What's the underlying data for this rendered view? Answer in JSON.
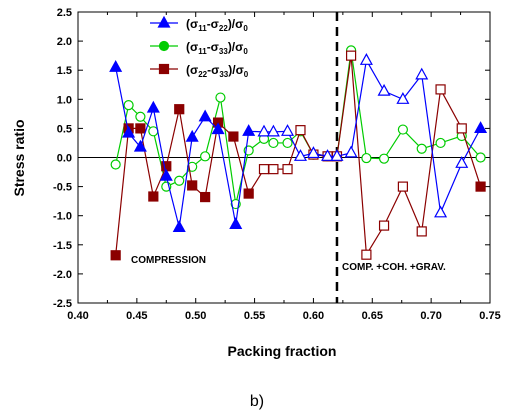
{
  "caption": "b)",
  "chart_data": {
    "type": "line",
    "xlabel": "Packing fraction",
    "ylabel": "Stress ratio",
    "xlim": [
      0.4,
      0.75
    ],
    "ylim": [
      -2.5,
      2.5
    ],
    "x_ticks": [
      0.4,
      0.45,
      0.5,
      0.55,
      0.6,
      0.65,
      0.7,
      0.75
    ],
    "y_ticks": [
      -2.5,
      -2.0,
      -1.5,
      -1.0,
      -0.5,
      0.0,
      0.5,
      1.0,
      1.5,
      2.0,
      2.5
    ],
    "x_tick_labels": [
      "0.40",
      "0.45",
      "0.50",
      "0.55",
      "0.60",
      "0.65",
      "0.70",
      "0.75"
    ],
    "y_tick_labels": [
      "-2.5",
      "-2.0",
      "-1.5",
      "-1.0",
      "-0.5",
      "0.0",
      "0.5",
      "1.0",
      "1.5",
      "2.0",
      "2.5"
    ],
    "zero_line": true,
    "divider_x": 0.62,
    "legend_position": "top-left",
    "annotations": {
      "left": "COMPRESSION",
      "right": "COMP. +COH. +GRAV."
    },
    "series": [
      {
        "name_parts": [
          "(σ",
          "11",
          "-σ",
          "22",
          ")/σ",
          "0"
        ],
        "color": "#0000ff",
        "marker": "triangle",
        "points": [
          {
            "x": 0.432,
            "y": 1.55,
            "filled": true
          },
          {
            "x": 0.443,
            "y": 0.42,
            "filled": true
          },
          {
            "x": 0.453,
            "y": 0.18,
            "filled": true
          },
          {
            "x": 0.464,
            "y": 0.85,
            "filled": true
          },
          {
            "x": 0.475,
            "y": -0.32,
            "filled": true
          },
          {
            "x": 0.486,
            "y": -1.2,
            "filled": true
          },
          {
            "x": 0.497,
            "y": 0.35,
            "filled": true
          },
          {
            "x": 0.508,
            "y": 0.7,
            "filled": true
          },
          {
            "x": 0.519,
            "y": 0.48,
            "filled": true
          },
          {
            "x": 0.534,
            "y": -1.15,
            "filled": true
          },
          {
            "x": 0.545,
            "y": 0.45,
            "filled": true
          },
          {
            "x": 0.558,
            "y": 0.44,
            "filled": false
          },
          {
            "x": 0.566,
            "y": 0.44,
            "filled": false
          },
          {
            "x": 0.578,
            "y": 0.45,
            "filled": false
          },
          {
            "x": 0.589,
            "y": 0.02,
            "filled": false
          },
          {
            "x": 0.6,
            "y": 0.07,
            "filled": false
          },
          {
            "x": 0.612,
            "y": 0.02,
            "filled": false
          },
          {
            "x": 0.62,
            "y": 0.02,
            "filled": false
          },
          {
            "x": 0.632,
            "y": 0.08,
            "filled": false
          },
          {
            "x": 0.645,
            "y": 1.67,
            "filled": false
          },
          {
            "x": 0.66,
            "y": 1.14,
            "filled": false
          },
          {
            "x": 0.676,
            "y": 1.0,
            "filled": false
          },
          {
            "x": 0.692,
            "y": 1.42,
            "filled": false
          },
          {
            "x": 0.708,
            "y": -0.95,
            "filled": false
          },
          {
            "x": 0.726,
            "y": -0.1,
            "filled": false
          },
          {
            "x": 0.742,
            "y": 0.5,
            "filled": true
          }
        ]
      },
      {
        "name_parts": [
          "(σ",
          "11",
          "-σ",
          "33",
          ")/σ",
          "0"
        ],
        "color": "#00cc00",
        "marker": "circle",
        "points": [
          {
            "x": 0.432,
            "y": -0.12,
            "filled": false
          },
          {
            "x": 0.443,
            "y": 0.9,
            "filled": false
          },
          {
            "x": 0.453,
            "y": 0.7,
            "filled": false
          },
          {
            "x": 0.464,
            "y": 0.45,
            "filled": false
          },
          {
            "x": 0.475,
            "y": -0.5,
            "filled": false
          },
          {
            "x": 0.486,
            "y": -0.4,
            "filled": false
          },
          {
            "x": 0.497,
            "y": -0.16,
            "filled": false
          },
          {
            "x": 0.508,
            "y": 0.02,
            "filled": false
          },
          {
            "x": 0.521,
            "y": 1.03,
            "filled": false
          },
          {
            "x": 0.534,
            "y": -0.8,
            "filled": false
          },
          {
            "x": 0.545,
            "y": 0.12,
            "filled": false
          },
          {
            "x": 0.558,
            "y": 0.32,
            "filled": false
          },
          {
            "x": 0.566,
            "y": 0.25,
            "filled": false
          },
          {
            "x": 0.578,
            "y": 0.25,
            "filled": false
          },
          {
            "x": 0.589,
            "y": 0.45,
            "filled": false
          },
          {
            "x": 0.6,
            "y": 0.05,
            "filled": false
          },
          {
            "x": 0.612,
            "y": 0.02,
            "filled": false
          },
          {
            "x": 0.62,
            "y": 0.02,
            "filled": false
          },
          {
            "x": 0.632,
            "y": 1.84,
            "filled": false
          },
          {
            "x": 0.645,
            "y": -0.01,
            "filled": false
          },
          {
            "x": 0.66,
            "y": -0.02,
            "filled": false
          },
          {
            "x": 0.676,
            "y": 0.48,
            "filled": false
          },
          {
            "x": 0.692,
            "y": 0.15,
            "filled": false
          },
          {
            "x": 0.708,
            "y": 0.25,
            "filled": false
          },
          {
            "x": 0.726,
            "y": 0.37,
            "filled": false
          },
          {
            "x": 0.742,
            "y": 0.0,
            "filled": false
          }
        ]
      },
      {
        "name_parts": [
          "(σ",
          "22",
          "-σ",
          "33",
          ")/σ",
          "0"
        ],
        "color": "#8b0000",
        "marker": "square",
        "points": [
          {
            "x": 0.432,
            "y": -1.68,
            "filled": true
          },
          {
            "x": 0.443,
            "y": 0.5,
            "filled": true
          },
          {
            "x": 0.453,
            "y": 0.5,
            "filled": true
          },
          {
            "x": 0.464,
            "y": -0.67,
            "filled": true
          },
          {
            "x": 0.475,
            "y": -0.15,
            "filled": true
          },
          {
            "x": 0.486,
            "y": 0.83,
            "filled": true
          },
          {
            "x": 0.497,
            "y": -0.48,
            "filled": true
          },
          {
            "x": 0.508,
            "y": -0.68,
            "filled": true
          },
          {
            "x": 0.519,
            "y": 0.6,
            "filled": true
          },
          {
            "x": 0.532,
            "y": 0.36,
            "filled": true
          },
          {
            "x": 0.545,
            "y": -0.62,
            "filled": true
          },
          {
            "x": 0.558,
            "y": -0.2,
            "filled": false
          },
          {
            "x": 0.566,
            "y": -0.2,
            "filled": false
          },
          {
            "x": 0.578,
            "y": -0.2,
            "filled": false
          },
          {
            "x": 0.589,
            "y": 0.47,
            "filled": false
          },
          {
            "x": 0.6,
            "y": 0.05,
            "filled": false
          },
          {
            "x": 0.612,
            "y": 0.02,
            "filled": false
          },
          {
            "x": 0.62,
            "y": 0.02,
            "filled": false
          },
          {
            "x": 0.632,
            "y": 1.75,
            "filled": false
          },
          {
            "x": 0.645,
            "y": -1.67,
            "filled": false
          },
          {
            "x": 0.66,
            "y": -1.17,
            "filled": false
          },
          {
            "x": 0.676,
            "y": -0.5,
            "filled": false
          },
          {
            "x": 0.692,
            "y": -1.27,
            "filled": false
          },
          {
            "x": 0.708,
            "y": 1.17,
            "filled": false
          },
          {
            "x": 0.726,
            "y": 0.5,
            "filled": false
          },
          {
            "x": 0.742,
            "y": -0.5,
            "filled": true
          }
        ]
      }
    ]
  }
}
